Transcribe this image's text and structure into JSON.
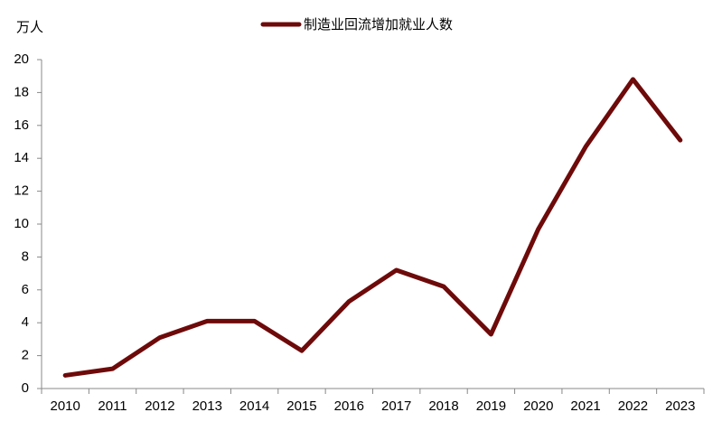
{
  "chart_data": {
    "type": "line",
    "y_label": "万人",
    "categories": [
      "2010",
      "2011",
      "2012",
      "2013",
      "2014",
      "2015",
      "2016",
      "2017",
      "2018",
      "2019",
      "2020",
      "2021",
      "2022",
      "2023"
    ],
    "series": [
      {
        "name": "制造业回流增加就业人数",
        "color": "#6e0a0a",
        "values": [
          0.8,
          1.2,
          3.1,
          4.1,
          4.1,
          2.3,
          5.3,
          7.2,
          6.2,
          3.3,
          9.7,
          14.7,
          18.8,
          15.1
        ]
      }
    ],
    "ylim": [
      0,
      20
    ],
    "yticks": [
      0,
      2,
      4,
      6,
      8,
      10,
      12,
      14,
      16,
      18,
      20
    ],
    "legend": "top"
  }
}
